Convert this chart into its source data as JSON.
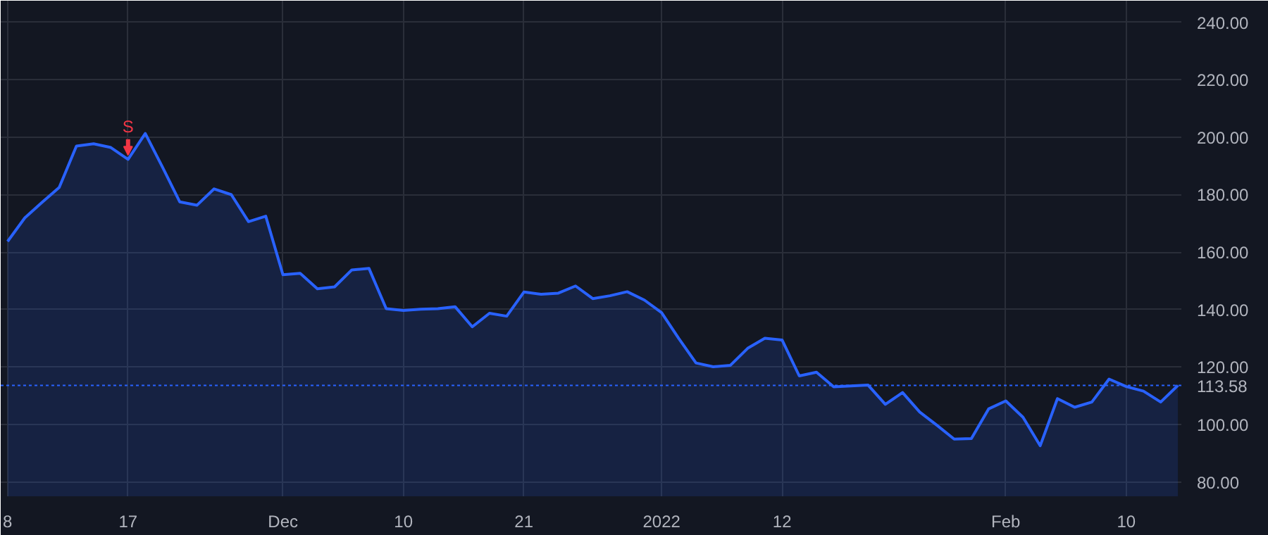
{
  "chart_data": {
    "type": "area",
    "categories": [
      "8",
      null,
      null,
      null,
      null,
      null,
      null,
      "17",
      null,
      null,
      null,
      null,
      null,
      null,
      null,
      null,
      "Dec",
      null,
      null,
      null,
      null,
      null,
      null,
      "10",
      null,
      null,
      null,
      null,
      null,
      null,
      "21",
      null,
      null,
      null,
      null,
      null,
      null,
      null,
      "2022",
      null,
      null,
      null,
      null,
      null,
      null,
      "12",
      null,
      null,
      null,
      null,
      null,
      null,
      null,
      null,
      null,
      null,
      null,
      null,
      "Feb",
      null,
      null,
      null,
      null,
      null,
      null,
      "10",
      null,
      null,
      null
    ],
    "series": [
      {
        "color": "#2962ff",
        "values": [
          163.7,
          171.9,
          177.3,
          182.5,
          196.9,
          197.7,
          196.4,
          192.3,
          201.3,
          189.6,
          177.5,
          176.3,
          182.0,
          180.0,
          170.6,
          172.5,
          152.1,
          152.6,
          147.2,
          147.9,
          153.8,
          154.3,
          140.3,
          139.7,
          140.1,
          140.3,
          141.0,
          134.0,
          138.7,
          137.7,
          146.1,
          145.3,
          145.7,
          148.2,
          143.8,
          144.8,
          146.2,
          143.3,
          138.9,
          129.9,
          121.4,
          120.1,
          120.6,
          126.5,
          130.0,
          129.4,
          116.9,
          118.2,
          113.1,
          113.4,
          113.7,
          107.0,
          111.1,
          104.3,
          99.7,
          94.9,
          95.1,
          105.4,
          108.2,
          102.5,
          92.6,
          109.0,
          106.0,
          107.8,
          115.8,
          113.2,
          111.6,
          107.8,
          113.58
        ]
      }
    ],
    "ylim": [
      75,
      247.5
    ],
    "yticks": [
      {
        "value": 80,
        "label": "80.00"
      },
      {
        "value": 100,
        "label": "100.00"
      },
      {
        "value": 120,
        "label": "120.00"
      },
      {
        "value": 140,
        "label": "140.00"
      },
      {
        "value": 160,
        "label": "160.00"
      },
      {
        "value": 180,
        "label": "180.00"
      },
      {
        "value": 200,
        "label": "200.00"
      },
      {
        "value": 220,
        "label": "220.00"
      },
      {
        "value": 240,
        "label": "240.00"
      }
    ],
    "grid": true,
    "ref_lines": [
      {
        "axis": "y",
        "value": 113.58,
        "label": "113.58",
        "color": "#2962ff",
        "line_style": "dotted"
      }
    ],
    "annotations": [
      {
        "text": "S",
        "x": "17",
        "y": 192.3
      }
    ]
  }
}
